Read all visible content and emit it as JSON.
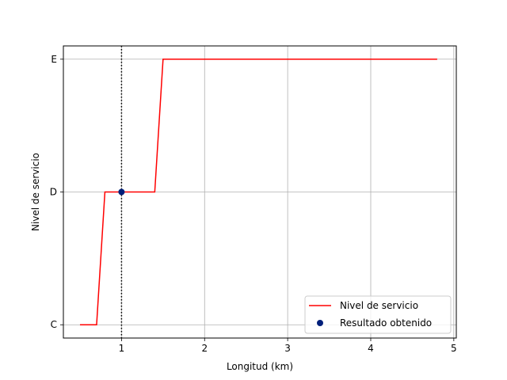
{
  "chart_data": {
    "type": "line",
    "title": "",
    "xlabel": "Longitud (km)",
    "ylabel": "Nivel de servicio",
    "xlim": [
      0.3,
      5.03
    ],
    "ylim": [
      -0.1,
      2.1
    ],
    "grid": true,
    "x_ticks": [
      1,
      2,
      3,
      4,
      5
    ],
    "y_ticks": [
      {
        "value": 0,
        "label": "C"
      },
      {
        "value": 1,
        "label": "D"
      },
      {
        "value": 2,
        "label": "E"
      }
    ],
    "series": [
      {
        "name": "Nivel de servicio",
        "color": "#ff0000",
        "x": [
          0.5,
          0.7,
          0.8,
          1.4,
          1.5,
          4.8
        ],
        "y": [
          0,
          0,
          1,
          1,
          2,
          2
        ]
      }
    ],
    "points": [
      {
        "name": "Resultado obtenido",
        "color": "#001f7a",
        "x": 1.0,
        "y": 1
      }
    ],
    "vline": {
      "x": 1.0,
      "color": "#000000",
      "style": "dotted"
    },
    "legend": {
      "placement": "lower-right",
      "entries": [
        "Nivel de servicio",
        "Resultado obtenido"
      ]
    }
  }
}
